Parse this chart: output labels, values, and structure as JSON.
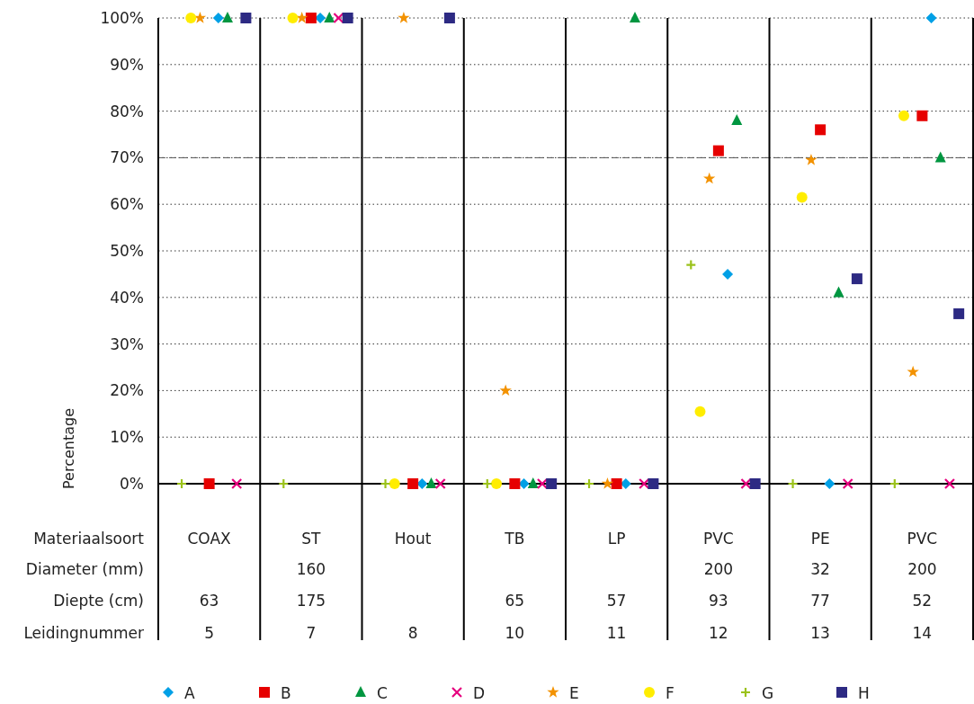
{
  "chart_data": {
    "type": "scatter",
    "ylabel": "Percentage",
    "categories": [
      "COAX\n\n63\n5",
      "ST\n160\n175\n7",
      "Hout\n\n\n8",
      "TB\n\n65\n10",
      "LP\n\n57\n11",
      "PVC\n200\n93\n12",
      "PE\n32\n77\n13",
      "PVC\n200\n52\n14"
    ],
    "annotations": [
      "Materiaalsoort",
      "Diameter (mm)",
      "Diepte (cm)",
      "Leidingnummer"
    ],
    "ylim": [
      0,
      100
    ],
    "yticks": [
      {
        "value": 0,
        "label": "0%"
      },
      {
        "value": 10,
        "label": "10%"
      },
      {
        "value": 20,
        "label": "20%"
      },
      {
        "value": 30,
        "label": "30%"
      },
      {
        "value": 40,
        "label": "40%"
      },
      {
        "value": 50,
        "label": "50%"
      },
      {
        "value": 60,
        "label": "60%"
      },
      {
        "value": 70,
        "label": "70%"
      },
      {
        "value": 80,
        "label": "80%"
      },
      {
        "value": 90,
        "label": "90%"
      },
      {
        "value": 100,
        "label": "100%"
      }
    ],
    "grid": "y",
    "legend": "bottom",
    "ref_lines": [
      {
        "axis": "y",
        "value": 70,
        "color": "#555555",
        "line_style": "dashed"
      }
    ],
    "series": [
      {
        "name": "A",
        "color": "#00a0e6",
        "marker": "diamond",
        "values": [
          100,
          100,
          0,
          0,
          0,
          45,
          0,
          100
        ]
      },
      {
        "name": "B",
        "color": "#e60000",
        "marker": "square",
        "values": [
          0,
          100,
          0,
          0,
          0,
          71.5,
          76,
          79
        ]
      },
      {
        "name": "C",
        "color": "#009640",
        "marker": "triangle",
        "values": [
          100,
          100,
          0,
          0,
          100,
          78,
          41,
          70
        ]
      },
      {
        "name": "D",
        "color": "#e6007e",
        "marker": "cross",
        "values": [
          0,
          100,
          0,
          0,
          0,
          0,
          0,
          0
        ]
      },
      {
        "name": "E",
        "color": "#f39200",
        "marker": "star",
        "values": [
          100,
          100,
          100,
          20,
          0,
          65.5,
          69.5,
          24
        ]
      },
      {
        "name": "F",
        "color": "#ffed00",
        "marker": "circle",
        "values": [
          100,
          100,
          0,
          0,
          null,
          15.5,
          61.5,
          79
        ]
      },
      {
        "name": "G",
        "color": "#9bc21b",
        "marker": "plus",
        "values": [
          0,
          0,
          0,
          0,
          0,
          47,
          0,
          0
        ]
      },
      {
        "name": "H",
        "color": "#2d2a83",
        "marker": "square",
        "values": [
          100,
          100,
          100,
          0,
          0,
          0,
          44,
          36.5
        ]
      }
    ]
  }
}
